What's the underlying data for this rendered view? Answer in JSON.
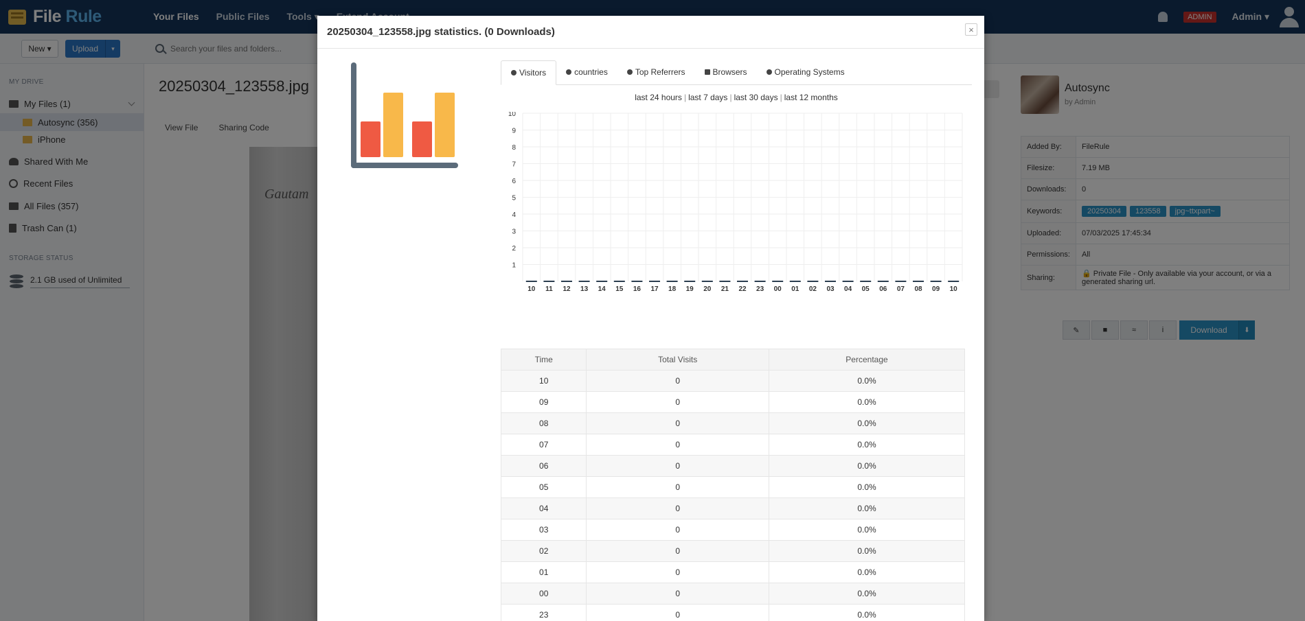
{
  "app": {
    "logo_file": "File",
    "logo_rule": "Rule",
    "nav": [
      "Your Files",
      "Public Files",
      "Tools ▾",
      "Extend Account"
    ],
    "admin_badge": "ADMIN",
    "admin_menu": "Admin ▾"
  },
  "toolbar": {
    "new_label": "New ▾",
    "upload_label": "Upload",
    "search_placeholder": "Search your files and folders..."
  },
  "sidebar": {
    "my_drive_heading": "MY DRIVE",
    "items": [
      {
        "label": "My Files (1)"
      },
      {
        "label": "Autosync (356)"
      },
      {
        "label": "iPhone"
      },
      {
        "label": "Shared With Me"
      },
      {
        "label": "Recent Files"
      },
      {
        "label": "All Files (357)"
      },
      {
        "label": "Trash Can (1)"
      }
    ],
    "storage_heading": "STORAGE STATUS",
    "storage_text": "2.1 GB used of Unlimited"
  },
  "file": {
    "title": "20250304_123558.jpg",
    "actions": [
      "View File",
      "Sharing Code"
    ],
    "image_text": "Gautam"
  },
  "right_panel": {
    "folder_name": "Autosync",
    "by": "by Admin",
    "rows": [
      {
        "k": "Added By:",
        "v": "FileRule"
      },
      {
        "k": "Filesize:",
        "v": "7.19 MB"
      },
      {
        "k": "Downloads:",
        "v": "0"
      },
      {
        "k": "Keywords:",
        "v": ""
      },
      {
        "k": "Uploaded:",
        "v": "07/03/2025 17:45:34"
      },
      {
        "k": "Permissions:",
        "v": "All"
      },
      {
        "k": "Sharing:",
        "v": "🔒 Private File - Only available via your account, or via a generated sharing url."
      }
    ],
    "keywords": [
      "20250304",
      "123558",
      "jpg~ttxpart~"
    ],
    "download_label": "Download"
  },
  "modal": {
    "title": "20250304_123558.jpg statistics. (0 Downloads)",
    "close": "×",
    "tabs": [
      "Visitors",
      "countries",
      "Top Referrers",
      "Browsers",
      "Operating Systems"
    ],
    "ranges": [
      "last 24 hours",
      "last 7 days",
      "last 30 days",
      "last 12 months"
    ],
    "table_headers": [
      "Time",
      "Total Visits",
      "Percentage"
    ],
    "table_rows": [
      [
        "10",
        "0",
        "0.0%"
      ],
      [
        "09",
        "0",
        "0.0%"
      ],
      [
        "08",
        "0",
        "0.0%"
      ],
      [
        "07",
        "0",
        "0.0%"
      ],
      [
        "06",
        "0",
        "0.0%"
      ],
      [
        "05",
        "0",
        "0.0%"
      ],
      [
        "04",
        "0",
        "0.0%"
      ],
      [
        "03",
        "0",
        "0.0%"
      ],
      [
        "02",
        "0",
        "0.0%"
      ],
      [
        "01",
        "0",
        "0.0%"
      ],
      [
        "00",
        "0",
        "0.0%"
      ],
      [
        "23",
        "0",
        "0.0%"
      ]
    ]
  },
  "chart_data": {
    "type": "bar",
    "categories": [
      "10",
      "11",
      "12",
      "13",
      "14",
      "15",
      "16",
      "17",
      "18",
      "19",
      "20",
      "21",
      "22",
      "23",
      "00",
      "01",
      "02",
      "03",
      "04",
      "05",
      "06",
      "07",
      "08",
      "09",
      "10"
    ],
    "values": [
      0,
      0,
      0,
      0,
      0,
      0,
      0,
      0,
      0,
      0,
      0,
      0,
      0,
      0,
      0,
      0,
      0,
      0,
      0,
      0,
      0,
      0,
      0,
      0,
      0
    ],
    "ylim": [
      0,
      10
    ],
    "yticks": [
      "1",
      "2",
      "3",
      "4",
      "5",
      "6",
      "7",
      "8",
      "9",
      "10"
    ],
    "grid": true
  }
}
